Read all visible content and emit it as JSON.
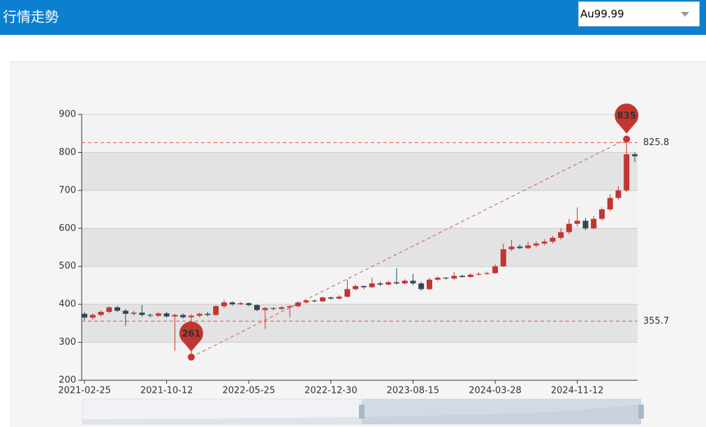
{
  "header": {
    "title": "行情走勢",
    "select": "Au99.99"
  },
  "chart_data": {
    "type": "candlestick",
    "categories": [
      "2021-02-25",
      null,
      null,
      null,
      null,
      null,
      null,
      null,
      null,
      null,
      "2021-10-12",
      null,
      null,
      null,
      null,
      null,
      null,
      null,
      null,
      null,
      "2022-05-25",
      null,
      null,
      null,
      null,
      null,
      null,
      null,
      null,
      null,
      "2022-12-30",
      null,
      null,
      null,
      null,
      null,
      null,
      null,
      null,
      null,
      "2023-08-15",
      null,
      null,
      null,
      null,
      null,
      null,
      null,
      null,
      null,
      "2024-03-28",
      null,
      null,
      null,
      null,
      null,
      null,
      null,
      null,
      null,
      "2024-11-12",
      null,
      null,
      null,
      null,
      null,
      null,
      null
    ],
    "series": [
      {
        "up_color": "#c23531",
        "down_color": "#314656",
        "values": [
          [
            375,
            365,
            358,
            380
          ],
          [
            365,
            372,
            360,
            376
          ],
          [
            372,
            380,
            368,
            384
          ],
          [
            380,
            392,
            376,
            395
          ],
          [
            392,
            383,
            380,
            396
          ],
          [
            383,
            375,
            343,
            388
          ],
          [
            375,
            378,
            370,
            383
          ],
          [
            378,
            372,
            368,
            398
          ],
          [
            372,
            370,
            365,
            376
          ],
          [
            370,
            376,
            366,
            379
          ],
          [
            376,
            368,
            365,
            380
          ],
          [
            368,
            372,
            278,
            375
          ],
          [
            372,
            366,
            362,
            376
          ],
          [
            366,
            370,
            261,
            374
          ],
          [
            370,
            375,
            366,
            378
          ],
          [
            375,
            372,
            368,
            380
          ],
          [
            372,
            395,
            370,
            398
          ],
          [
            395,
            405,
            390,
            412
          ],
          [
            405,
            400,
            396,
            408
          ],
          [
            400,
            403,
            398,
            406
          ],
          [
            403,
            398,
            395,
            405
          ],
          [
            398,
            385,
            382,
            400
          ],
          [
            385,
            390,
            335,
            393
          ],
          [
            390,
            388,
            384,
            392
          ],
          [
            388,
            392,
            385,
            395
          ],
          [
            392,
            395,
            365,
            398
          ],
          [
            395,
            405,
            392,
            408
          ],
          [
            405,
            410,
            402,
            413
          ],
          [
            410,
            408,
            405,
            412
          ],
          [
            408,
            418,
            406,
            420
          ],
          [
            418,
            415,
            412,
            420
          ],
          [
            415,
            420,
            413,
            424
          ],
          [
            420,
            440,
            418,
            465
          ],
          [
            440,
            448,
            436,
            452
          ],
          [
            448,
            445,
            440,
            450
          ],
          [
            445,
            455,
            443,
            470
          ],
          [
            455,
            452,
            448,
            460
          ],
          [
            452,
            458,
            450,
            462
          ],
          [
            458,
            455,
            452,
            495
          ],
          [
            455,
            462,
            452,
            466
          ],
          [
            462,
            455,
            450,
            480
          ],
          [
            455,
            440,
            436,
            460
          ],
          [
            440,
            465,
            438,
            470
          ],
          [
            465,
            470,
            462,
            474
          ],
          [
            470,
            468,
            465,
            472
          ],
          [
            468,
            475,
            464,
            485
          ],
          [
            475,
            472,
            470,
            478
          ],
          [
            472,
            478,
            470,
            482
          ],
          [
            478,
            480,
            476,
            484
          ],
          [
            480,
            482,
            478,
            486
          ],
          [
            482,
            500,
            480,
            505
          ],
          [
            500,
            545,
            498,
            560
          ],
          [
            545,
            552,
            540,
            570
          ],
          [
            552,
            548,
            545,
            558
          ],
          [
            548,
            555,
            545,
            565
          ],
          [
            555,
            560,
            550,
            566
          ],
          [
            560,
            565,
            555,
            572
          ],
          [
            565,
            575,
            560,
            580
          ],
          [
            575,
            590,
            570,
            600
          ],
          [
            590,
            612,
            585,
            625
          ],
          [
            612,
            620,
            605,
            655
          ],
          [
            620,
            600,
            595,
            628
          ],
          [
            600,
            625,
            598,
            632
          ],
          [
            625,
            650,
            620,
            655
          ],
          [
            650,
            680,
            645,
            690
          ],
          [
            680,
            700,
            675,
            710
          ],
          [
            700,
            795,
            695,
            835
          ],
          [
            795,
            790,
            775,
            800
          ]
        ]
      }
    ],
    "mark_points": [
      {
        "value": 835,
        "color": "#c23531"
      },
      {
        "value": 261,
        "color": "#c23531"
      }
    ],
    "mark_lines": [
      {
        "value": 825.8,
        "color": "#d9534f"
      },
      {
        "value": 355.7,
        "color": "#d9534f"
      }
    ],
    "ylim": [
      200,
      900
    ],
    "yticks": [
      200,
      300,
      400,
      500,
      600,
      700,
      800,
      900
    ],
    "split_area": true
  }
}
